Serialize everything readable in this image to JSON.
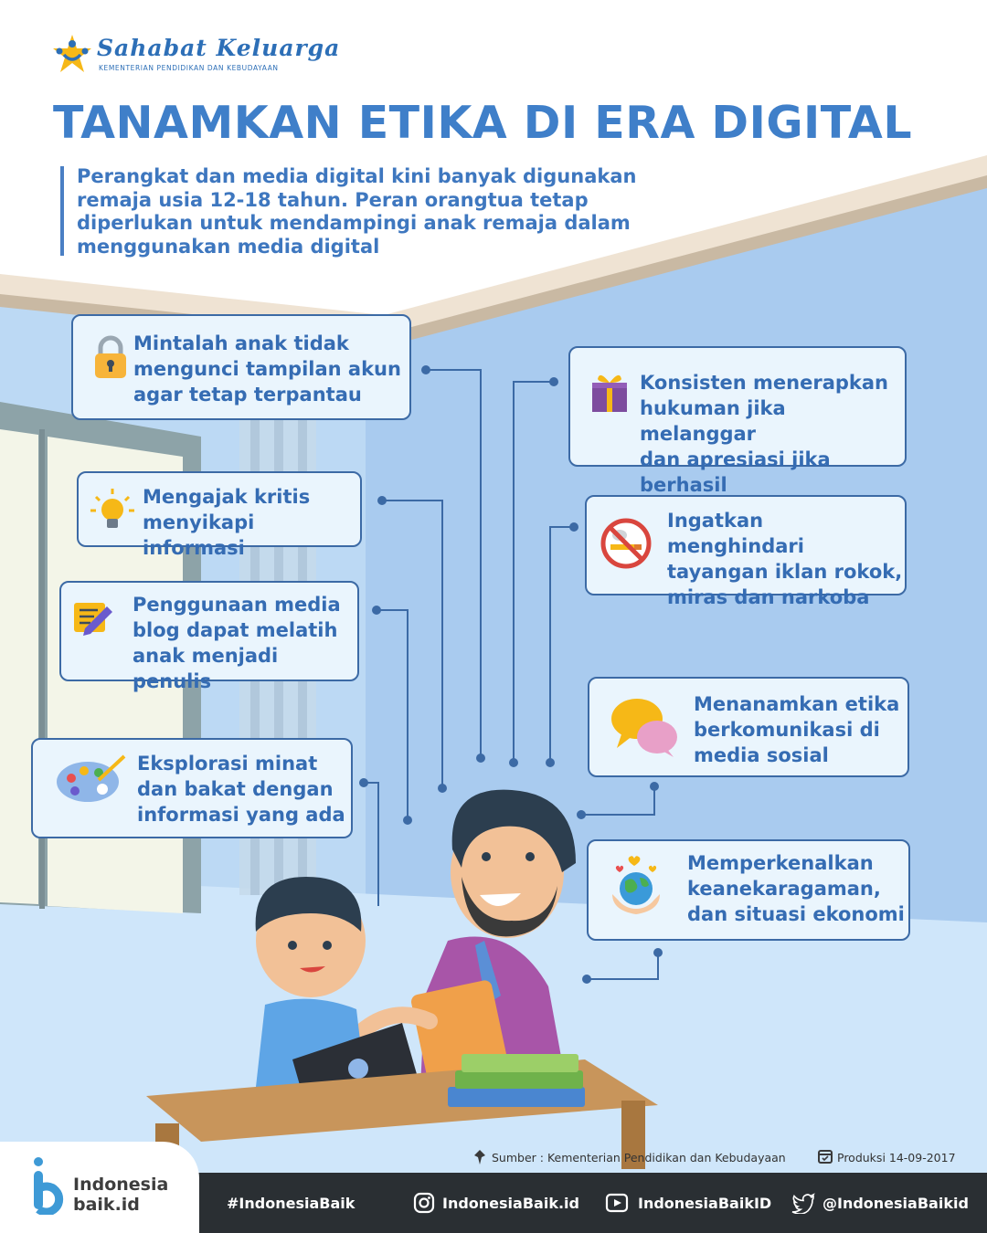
{
  "header": {
    "brand_name": "Sahabat Keluarga",
    "brand_subtitle": "KEMENTERIAN PENDIDIKAN DAN KEBUDAYAAN",
    "title": "TANAMKAN ETIKA DI ERA DIGITAL",
    "intro": "Perangkat dan media digital kini banyak digunakan remaja usia 12-18 tahun. Peran orangtua tetap diperlukan untuk mendampingi anak remaja dalam menggunakan media digital"
  },
  "tips": [
    {
      "text": "Mintalah anak tidak\nmengunci tampilan akun\nagar tetap terpantau",
      "icon": "padlock-icon"
    },
    {
      "text": "Mengajak kritis\nmenyikapi informasi",
      "icon": "lightbulb-icon"
    },
    {
      "text": "Penggunaan media\nblog dapat melatih\nanak menjadi penulis",
      "icon": "notepad-pen-icon"
    },
    {
      "text": "Eksplorasi minat\ndan bakat dengan\ninformasi yang ada",
      "icon": "paint-palette-icon"
    },
    {
      "text": "Konsisten menerapkan\nhukuman jika melanggar\ndan apresiasi jika berhasil",
      "icon": "gift-box-icon"
    },
    {
      "text": "Ingatkan menghindari\ntayangan iklan rokok,\nmiras dan narkoba",
      "icon": "no-smoking-icon"
    },
    {
      "text": "Menanamkan etika\nberkomunikasi di\nmedia sosial",
      "icon": "chat-bubbles-icon"
    },
    {
      "text": "Memperkenalkan\nkeanekaragaman,\ndan situasi ekonomi",
      "icon": "globe-hands-icon"
    }
  ],
  "source": {
    "label": "Sumber : Kementerian Pendidikan dan Kebudayaan",
    "production": "Produksi 14-09-2017"
  },
  "footer": {
    "logo_text": "Indonesia\nbaik.id",
    "hashtag": "#IndonesiaBaik",
    "instagram": "IndonesiaBaik.id",
    "youtube": "IndonesiaBaikID",
    "twitter": "@IndonesiaBaikid"
  },
  "colors": {
    "title": "#3f7fc9",
    "card_border": "#3c6aa5",
    "card_bg": "#eaf5fd",
    "wall": "#b9d7f3",
    "footer_bg": "#2a2f33"
  }
}
